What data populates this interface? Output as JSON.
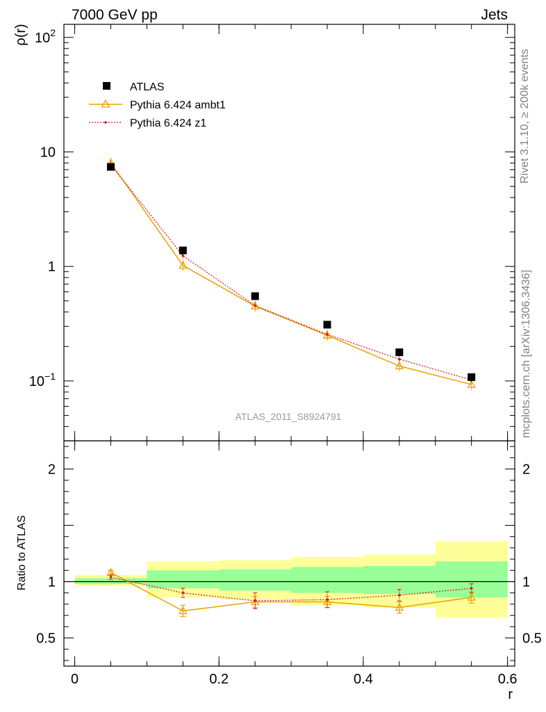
{
  "header": {
    "left": "7000 GeV pp",
    "right": "Jets"
  },
  "side_text": {
    "rivet": "Rivet 3.1.10, ≥ 200k events",
    "mcplots": "mcplots.cern.ch [arXiv:1306.3436]"
  },
  "watermark": "ATLAS_2011_S8924791",
  "colors": {
    "atlas": "#000000",
    "ambt1": "#e8a200",
    "z1": "#d41a1a",
    "band_inner": "#99ff99",
    "band_outer": "#ffff99"
  },
  "chart_data": [
    {
      "type": "scatter",
      "scale": "log",
      "ylabel": "ρ(r)",
      "ylim": [
        0.03,
        130
      ],
      "xlim": [
        -0.015,
        0.61
      ],
      "y_ticks": [
        {
          "value": 0.1,
          "base": "10",
          "exp": "−1"
        },
        {
          "value": 1,
          "base": "1",
          "exp": ""
        },
        {
          "value": 10,
          "base": "10",
          "exp": ""
        },
        {
          "value": 100,
          "base": "10",
          "exp": "2"
        }
      ],
      "legend": [
        "ATLAS",
        "Pythia 6.424 ambt1",
        "Pythia 6.424 z1"
      ],
      "legend_position": "top-left",
      "series": [
        {
          "name": "ATLAS",
          "x": [
            0.05,
            0.15,
            0.25,
            0.35,
            0.45,
            0.55
          ],
          "y": [
            7.4,
            1.38,
            0.55,
            0.31,
            0.178,
            0.108
          ]
        },
        {
          "name": "Pythia 6.424 ambt1",
          "x": [
            0.05,
            0.15,
            0.25,
            0.35,
            0.45,
            0.55
          ],
          "y": [
            8.0,
            1.02,
            0.45,
            0.25,
            0.135,
            0.093
          ]
        },
        {
          "name": "Pythia 6.424 z1",
          "x": [
            0.05,
            0.15,
            0.25,
            0.35,
            0.45,
            0.55
          ],
          "y": [
            7.7,
            1.24,
            0.455,
            0.255,
            0.155,
            0.102
          ]
        }
      ]
    },
    {
      "type": "scatter",
      "ylabel": "Ratio to ATLAS",
      "xlabel": "r",
      "ylim": [
        0.25,
        2.25
      ],
      "xlim": [
        -0.015,
        0.61
      ],
      "x_ticks": [
        "0",
        "0.2",
        "0.4",
        "0.6"
      ],
      "x_tick_values": [
        0,
        0.2,
        0.4,
        0.6
      ],
      "y_ticks": [
        "0.5",
        "1",
        "2"
      ],
      "y_tick_values": [
        0.5,
        1,
        2
      ],
      "bins": [
        {
          "x0": 0.0,
          "x1": 0.1,
          "inner": [
            0.98,
            1.03
          ],
          "outer": [
            0.96,
            1.06
          ]
        },
        {
          "x0": 0.1,
          "x1": 0.2,
          "inner": [
            0.94,
            1.1
          ],
          "outer": [
            0.86,
            1.18
          ]
        },
        {
          "x0": 0.2,
          "x1": 0.3,
          "inner": [
            0.92,
            1.11
          ],
          "outer": [
            0.84,
            1.19
          ]
        },
        {
          "x0": 0.3,
          "x1": 0.4,
          "inner": [
            0.9,
            1.13
          ],
          "outer": [
            0.79,
            1.22
          ]
        },
        {
          "x0": 0.4,
          "x1": 0.5,
          "inner": [
            0.89,
            1.14
          ],
          "outer": [
            0.77,
            1.24
          ]
        },
        {
          "x0": 0.5,
          "x1": 0.6,
          "inner": [
            0.86,
            1.18
          ],
          "outer": [
            0.68,
            1.36
          ]
        }
      ],
      "series": [
        {
          "name": "Pythia 6.424 ambt1",
          "x": [
            0.05,
            0.15,
            0.25,
            0.35,
            0.45,
            0.55
          ],
          "y": [
            1.08,
            0.74,
            0.82,
            0.82,
            0.77,
            0.86
          ],
          "err": [
            0.02,
            0.05,
            0.05,
            0.05,
            0.05,
            0.05
          ]
        },
        {
          "name": "Pythia 6.424 z1",
          "x": [
            0.05,
            0.15,
            0.25,
            0.35,
            0.45,
            0.55
          ],
          "y": [
            1.04,
            0.9,
            0.83,
            0.84,
            0.88,
            0.94
          ],
          "err": [
            0.02,
            0.04,
            0.07,
            0.07,
            0.05,
            0.04
          ]
        }
      ]
    }
  ]
}
